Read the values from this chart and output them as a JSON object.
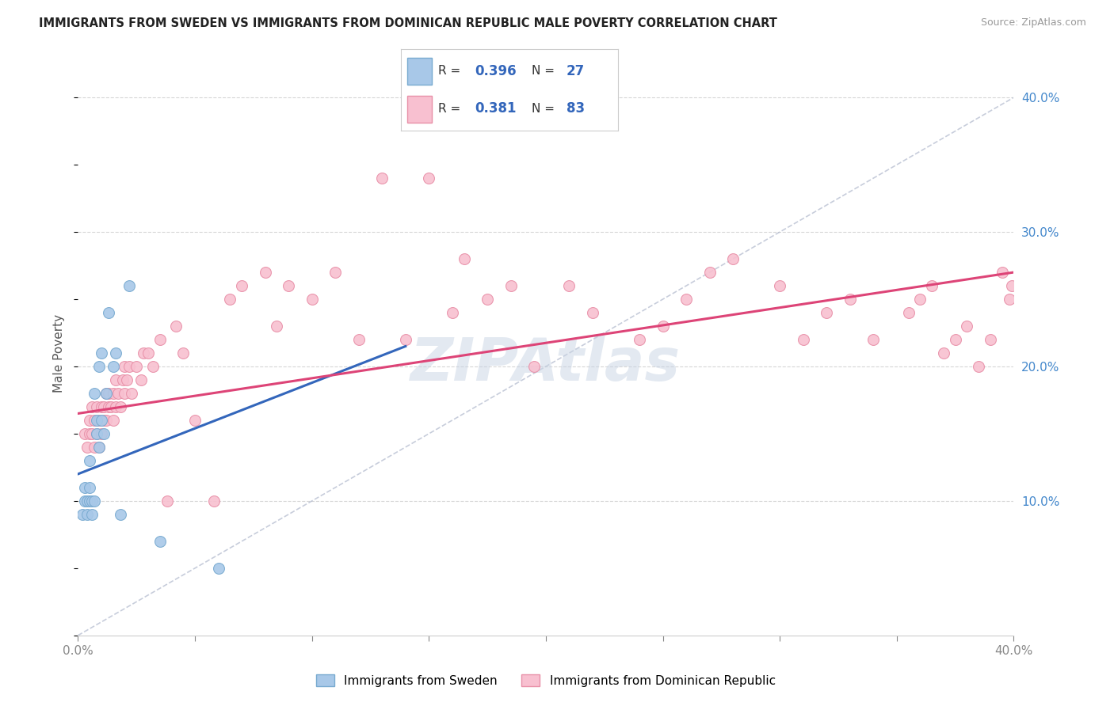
{
  "title": "IMMIGRANTS FROM SWEDEN VS IMMIGRANTS FROM DOMINICAN REPUBLIC MALE POVERTY CORRELATION CHART",
  "source": "Source: ZipAtlas.com",
  "ylabel": "Male Poverty",
  "xlim": [
    0.0,
    0.4
  ],
  "ylim": [
    0.0,
    0.42
  ],
  "grid_color": "#cccccc",
  "background_color": "#ffffff",
  "watermark": "ZIPAtlas",
  "legend_R1": "0.396",
  "legend_N1": "27",
  "legend_R2": "0.381",
  "legend_N2": "83",
  "sweden_color": "#a8c8e8",
  "sweden_edge": "#78aad0",
  "dominican_color": "#f8c0d0",
  "dominican_edge": "#e890a8",
  "sweden_line_color": "#3366bb",
  "dominican_line_color": "#dd4477",
  "diagonal_color": "#b0b8cc",
  "sweden_scatter_x": [
    0.002,
    0.003,
    0.003,
    0.004,
    0.004,
    0.005,
    0.005,
    0.005,
    0.006,
    0.006,
    0.007,
    0.007,
    0.008,
    0.008,
    0.009,
    0.009,
    0.01,
    0.01,
    0.011,
    0.012,
    0.013,
    0.015,
    0.016,
    0.018,
    0.022,
    0.035,
    0.06
  ],
  "sweden_scatter_y": [
    0.09,
    0.1,
    0.11,
    0.09,
    0.1,
    0.1,
    0.11,
    0.13,
    0.09,
    0.1,
    0.1,
    0.18,
    0.15,
    0.16,
    0.14,
    0.2,
    0.16,
    0.21,
    0.15,
    0.18,
    0.24,
    0.2,
    0.21,
    0.09,
    0.26,
    0.07,
    0.05
  ],
  "dominican_scatter_x": [
    0.003,
    0.004,
    0.005,
    0.005,
    0.006,
    0.006,
    0.007,
    0.007,
    0.008,
    0.008,
    0.009,
    0.009,
    0.01,
    0.01,
    0.011,
    0.011,
    0.012,
    0.012,
    0.013,
    0.013,
    0.014,
    0.015,
    0.015,
    0.016,
    0.016,
    0.017,
    0.018,
    0.019,
    0.02,
    0.02,
    0.021,
    0.022,
    0.023,
    0.025,
    0.027,
    0.028,
    0.03,
    0.032,
    0.035,
    0.038,
    0.042,
    0.045,
    0.05,
    0.058,
    0.065,
    0.07,
    0.08,
    0.085,
    0.09,
    0.1,
    0.11,
    0.12,
    0.13,
    0.14,
    0.15,
    0.16,
    0.165,
    0.175,
    0.185,
    0.195,
    0.21,
    0.22,
    0.24,
    0.25,
    0.26,
    0.27,
    0.28,
    0.3,
    0.31,
    0.32,
    0.33,
    0.34,
    0.355,
    0.36,
    0.365,
    0.37,
    0.375,
    0.38,
    0.385,
    0.39,
    0.395,
    0.398,
    0.399
  ],
  "dominican_scatter_y": [
    0.15,
    0.14,
    0.15,
    0.16,
    0.15,
    0.17,
    0.14,
    0.16,
    0.15,
    0.17,
    0.14,
    0.16,
    0.15,
    0.17,
    0.16,
    0.17,
    0.16,
    0.18,
    0.17,
    0.18,
    0.17,
    0.16,
    0.18,
    0.17,
    0.19,
    0.18,
    0.17,
    0.19,
    0.18,
    0.2,
    0.19,
    0.2,
    0.18,
    0.2,
    0.19,
    0.21,
    0.21,
    0.2,
    0.22,
    0.1,
    0.23,
    0.21,
    0.16,
    0.1,
    0.25,
    0.26,
    0.27,
    0.23,
    0.26,
    0.25,
    0.27,
    0.22,
    0.34,
    0.22,
    0.34,
    0.24,
    0.28,
    0.25,
    0.26,
    0.2,
    0.26,
    0.24,
    0.22,
    0.23,
    0.25,
    0.27,
    0.28,
    0.26,
    0.22,
    0.24,
    0.25,
    0.22,
    0.24,
    0.25,
    0.26,
    0.21,
    0.22,
    0.23,
    0.2,
    0.22,
    0.27,
    0.25,
    0.26
  ],
  "sweden_line_x": [
    0.0,
    0.14
  ],
  "sweden_line_y": [
    0.115,
    0.215
  ],
  "dominican_line_x": [
    0.0,
    0.4
  ],
  "dominican_line_y": [
    0.165,
    0.27
  ]
}
